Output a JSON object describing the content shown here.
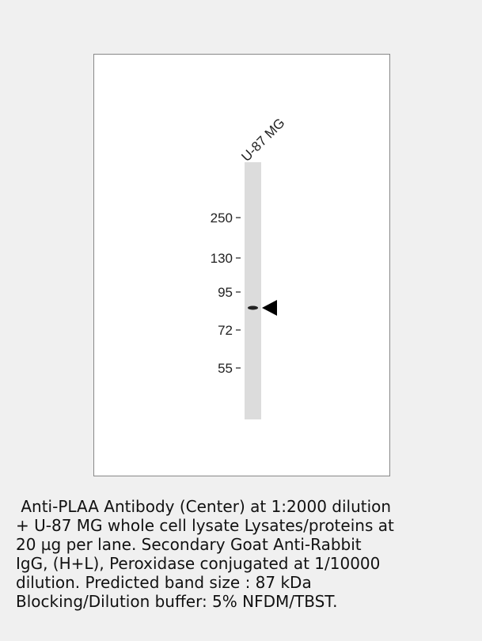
{
  "lane_label": "U-87 MG",
  "markers": [
    "250",
    "130",
    "95",
    "72",
    "55"
  ],
  "caption": [
    " Anti-PLAA Antibody (Center) at 1:2000 dilution",
    "+ U-87 MG whole cell lysate Lysates/proteins at",
    "20 µg per lane. Secondary Goat Anti-Rabbit",
    "IgG, (H+L), Peroxidase conjugated at 1/10000",
    "dilution. Predicted band size : 87 kDa",
    "Blocking/Dilution buffer: 5% NFDM/TBST."
  ]
}
